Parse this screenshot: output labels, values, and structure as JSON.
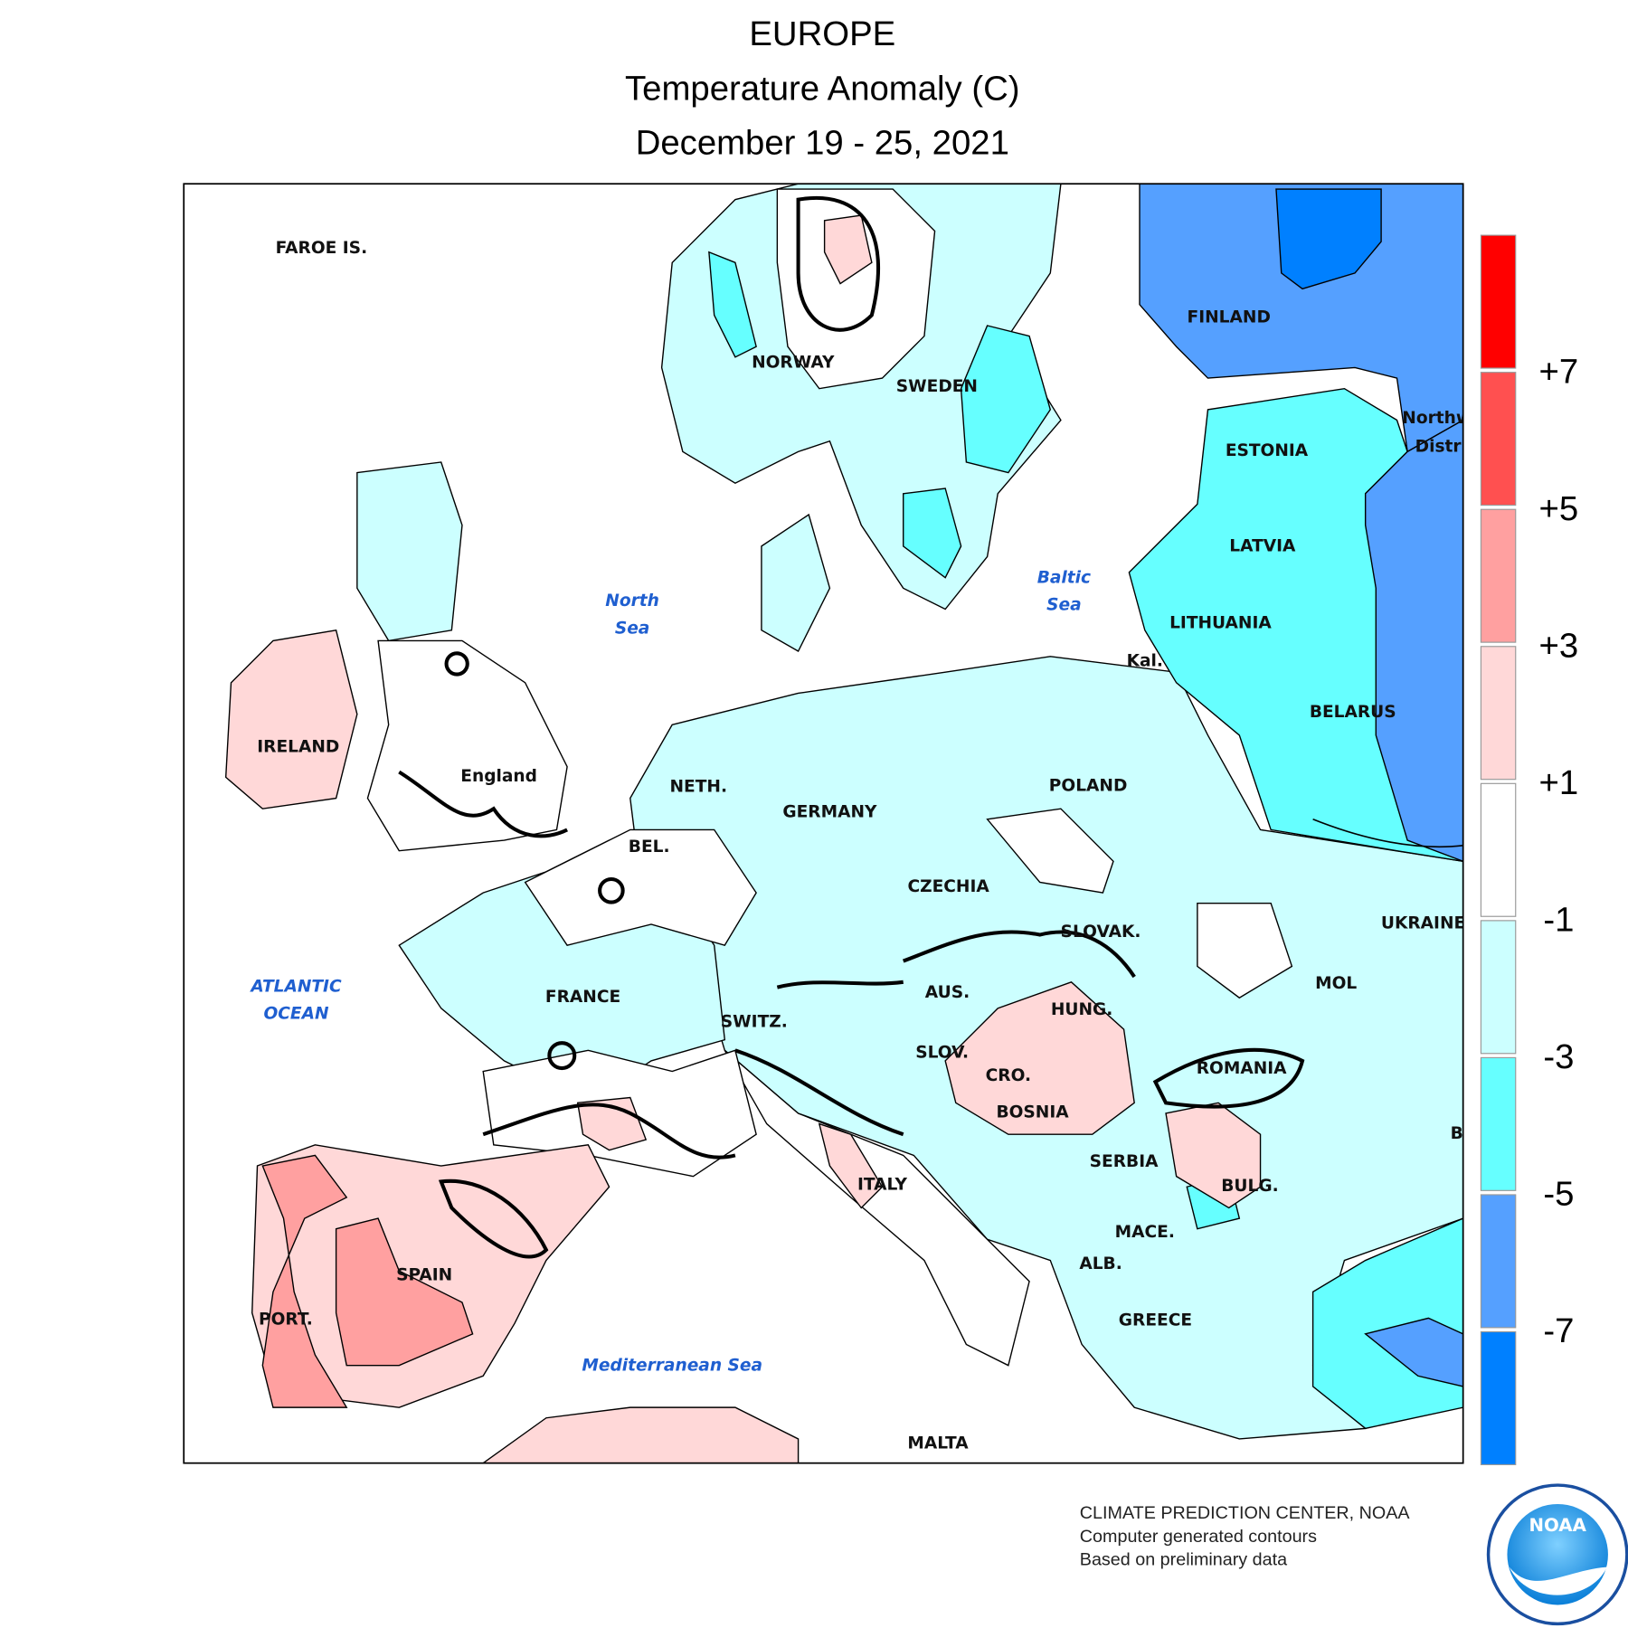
{
  "header": {
    "region": "EUROPE",
    "title": "Temperature Anomaly (C)",
    "period": "December 19 - 25, 2021"
  },
  "map": {
    "labels": [
      "FAROE IS.",
      "NORWAY",
      "SWEDEN",
      "FINLAND",
      "ESTONIA",
      "LATVIA",
      "LITHUANIA",
      "Kal.",
      "BELARUS",
      "POLAND",
      "UKRAINE",
      "IRELAND",
      "England",
      "NETH.",
      "GERMANY",
      "BEL.",
      "CZECHIA",
      "SLOVAK.",
      "FRANCE",
      "AUS.",
      "HUNG.",
      "MOL",
      "SWITZ.",
      "SLOV.",
      "CRO.",
      "ROMANIA",
      "BOSNIA",
      "SERBIA",
      "ITALY",
      "BULG.",
      "MACE.",
      "ALB.",
      "SPAIN",
      "PORT.",
      "GREECE",
      "MALTA",
      "Northw",
      "Distri",
      "B"
    ],
    "water_labels": [
      "North",
      "Sea",
      "Baltic",
      "Sea",
      "ATLANTIC",
      "OCEAN",
      "Mediterranean Sea"
    ]
  },
  "legend": {
    "colors": [
      "#ff0000",
      "#ff5050",
      "#ffa0a0",
      "#ffd8d8",
      "#ffffff",
      "#ccffff",
      "#66ffff",
      "#55a0ff",
      "#0080ff"
    ],
    "ticks": [
      "+7",
      "+5",
      "+3",
      "+1",
      "-1",
      "-3",
      "-5",
      "-7"
    ]
  },
  "footer": {
    "lines": [
      "CLIMATE PREDICTION CENTER, NOAA",
      "Computer generated contours",
      "Based on preliminary data"
    ]
  },
  "logo": {
    "text": "NOAA"
  }
}
